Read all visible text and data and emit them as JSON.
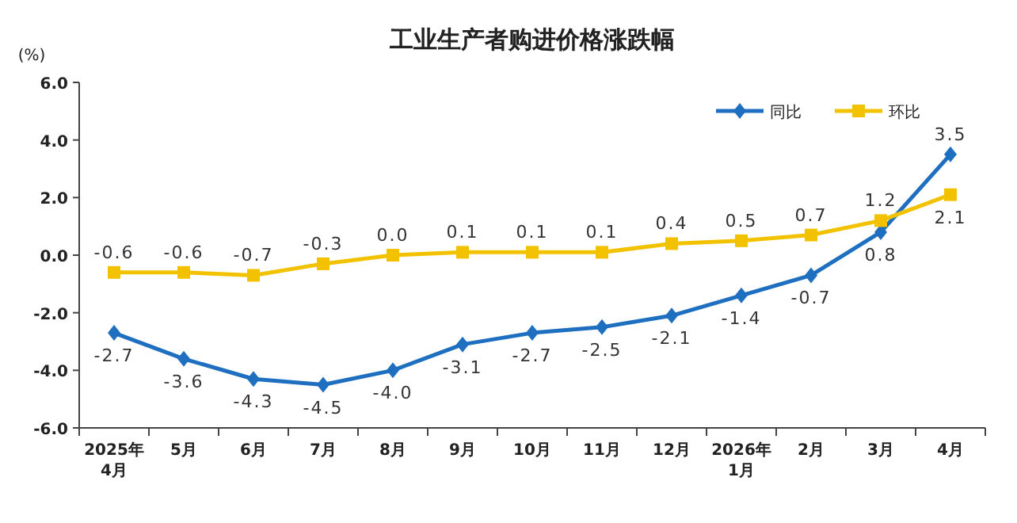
{
  "chart_data": {
    "type": "line",
    "title": "工业生产者购进价格涨跌幅",
    "ylabel": "(%)",
    "categories": [
      "2025年\n4月",
      "5月",
      "6月",
      "7月",
      "8月",
      "9月",
      "10月",
      "11月",
      "12月",
      "2026年\n1月",
      "2月",
      "3月",
      "4月"
    ],
    "series": [
      {
        "name": "同比",
        "color": "#1f6fc0",
        "marker": "diamond",
        "values": [
          -2.7,
          -3.6,
          -4.3,
          -4.5,
          -4.0,
          -3.1,
          -2.7,
          -2.5,
          -2.1,
          -1.4,
          -0.7,
          0.8,
          3.5
        ],
        "value_labels": [
          "-2.7",
          "-3.6",
          "-4.3",
          "-4.5",
          "-4.0",
          "-3.1",
          "-2.7",
          "-2.5",
          "-2.1",
          "-1.4",
          "-0.7",
          "0.8",
          "3.5"
        ]
      },
      {
        "name": "环比",
        "color": "#f2c200",
        "marker": "square",
        "values": [
          -0.6,
          -0.6,
          -0.7,
          -0.3,
          0.0,
          0.1,
          0.1,
          0.1,
          0.4,
          0.5,
          0.7,
          1.2,
          2.1
        ],
        "value_labels": [
          "-0.6",
          "-0.6",
          "-0.7",
          "-0.3",
          "0.0",
          "0.1",
          "0.1",
          "0.1",
          "0.4",
          "0.5",
          "0.7",
          "1.2",
          "2.1"
        ]
      }
    ],
    "ylim": [
      -6,
      6
    ],
    "yticks": [
      {
        "value": -6,
        "label": "-6.0"
      },
      {
        "value": -4,
        "label": "-4.0"
      },
      {
        "value": -2,
        "label": "-2.0"
      },
      {
        "value": 0,
        "label": "0.0"
      },
      {
        "value": 2,
        "label": "2.0"
      },
      {
        "value": 4,
        "label": "4.0"
      },
      {
        "value": 6,
        "label": "6.0"
      }
    ],
    "legend": "top right",
    "grid": false
  }
}
